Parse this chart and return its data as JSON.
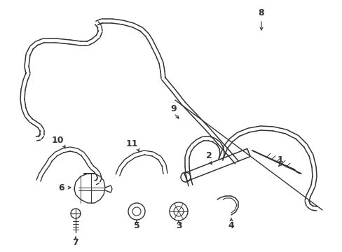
{
  "background_color": "#ffffff",
  "line_color": "#333333",
  "lw": 1.2,
  "fig_width": 4.89,
  "fig_height": 3.6,
  "dpi": 100
}
